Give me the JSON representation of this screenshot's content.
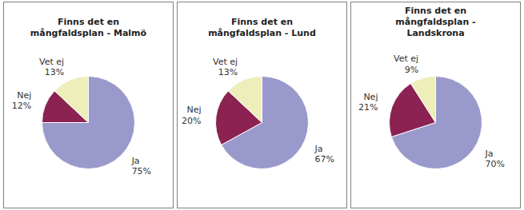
{
  "chart_data": [
    {
      "type": "pie",
      "title": "Finns det en\nmångfaldsplan - Malmö",
      "categories": [
        "Ja",
        "Nej",
        "Vet ej"
      ],
      "values": [
        75,
        12,
        13
      ],
      "value_labels": [
        "75%",
        "12%",
        "13%"
      ],
      "colors": [
        "#9999CC",
        "#8B2252",
        "#EEEEBB"
      ],
      "data_labels": true
    },
    {
      "type": "pie",
      "title": "Finns det en\nmångfaldsplan - Lund",
      "categories": [
        "Ja",
        "Nej",
        "Vet ej"
      ],
      "values": [
        67,
        20,
        13
      ],
      "value_labels": [
        "67%",
        "20%",
        "13%"
      ],
      "colors": [
        "#9999CC",
        "#8B2252",
        "#EEEEBB"
      ],
      "data_labels": true
    },
    {
      "type": "pie",
      "title": "Finns det en\nmångfaldsplan -\nLandskrona",
      "categories": [
        "Ja",
        "Nej",
        "Vet ej"
      ],
      "values": [
        70,
        21,
        9
      ],
      "value_labels": [
        "70%",
        "21%",
        "9%"
      ],
      "colors": [
        "#9999CC",
        "#8B2252",
        "#EEEEBB"
      ],
      "data_labels": true
    }
  ]
}
